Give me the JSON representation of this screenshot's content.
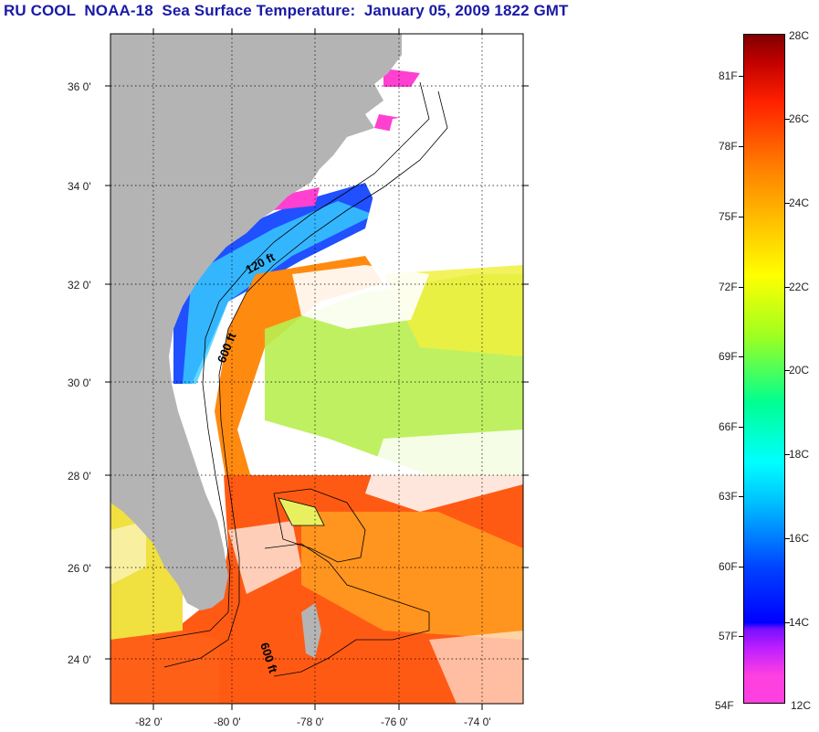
{
  "title": "RU COOL  NOAA-18  Sea Surface Temperature:  January 05, 2009 1822 GMT",
  "map": {
    "latitude_labels": [
      "36 0'",
      "34 0'",
      "32 0'",
      "30 0'",
      "28 0'",
      "26 0'",
      "24 0'"
    ],
    "longitude_labels": [
      "-82 0'",
      "-80 0'",
      "-78 0'",
      "-76 0'",
      "-74 0'"
    ],
    "contour_labels": [
      "120 ft",
      "600 ft",
      "600 ft"
    ],
    "land_color": "#b4b4b4"
  },
  "colorbar": {
    "fahrenheit_labels": [
      "81F",
      "78F",
      "75F",
      "72F",
      "69F",
      "66F",
      "63F",
      "60F",
      "57F",
      "54F"
    ],
    "celsius_labels": [
      "28C",
      "26C",
      "24C",
      "22C",
      "20C",
      "18C",
      "16C",
      "14C",
      "12C"
    ],
    "colors": [
      "#800000",
      "#ff0000",
      "#ff7f00",
      "#ffff00",
      "#00ff7f",
      "#00ffff",
      "#0000ff",
      "#7f00ff",
      "#ff00ff"
    ]
  }
}
